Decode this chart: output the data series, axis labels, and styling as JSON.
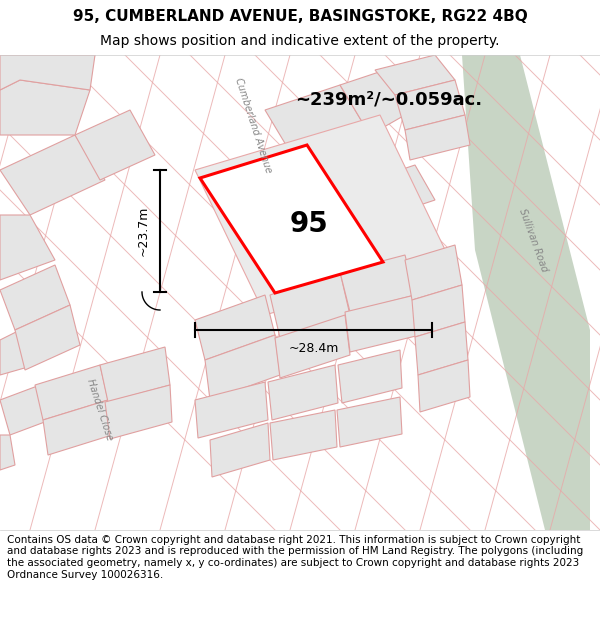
{
  "title": "95, CUMBERLAND AVENUE, BASINGSTOKE, RG22 4BQ",
  "subtitle": "Map shows position and indicative extent of the property.",
  "footer": "Contains OS data © Crown copyright and database right 2021. This information is subject to Crown copyright and database rights 2023 and is reproduced with the permission of HM Land Registry. The polygons (including the associated geometry, namely x, y co-ordinates) are subject to Crown copyright and database rights 2023 Ordnance Survey 100026316.",
  "area_label": "~239m²/~0.059ac.",
  "property_number": "95",
  "width_label": "~28.4m",
  "height_label": "~23.7m",
  "road_label_cumberland": "Cumberland Avenue",
  "road_label_sullivan": "Sullivan Road",
  "road_label_handel": "Handel Close",
  "map_bg": "#f2f2f2",
  "road_green_color": "#c8d5c5",
  "building_fill": "#e5e5e5",
  "building_stroke": "#e0a0a0",
  "property_fill": "#f0f0f0",
  "property_stroke": "#ff0000",
  "plot_bg_fill": "#ebebeb",
  "title_fontsize": 11,
  "subtitle_fontsize": 10,
  "footer_fontsize": 7.5,
  "road_color": "#e8a8a8"
}
